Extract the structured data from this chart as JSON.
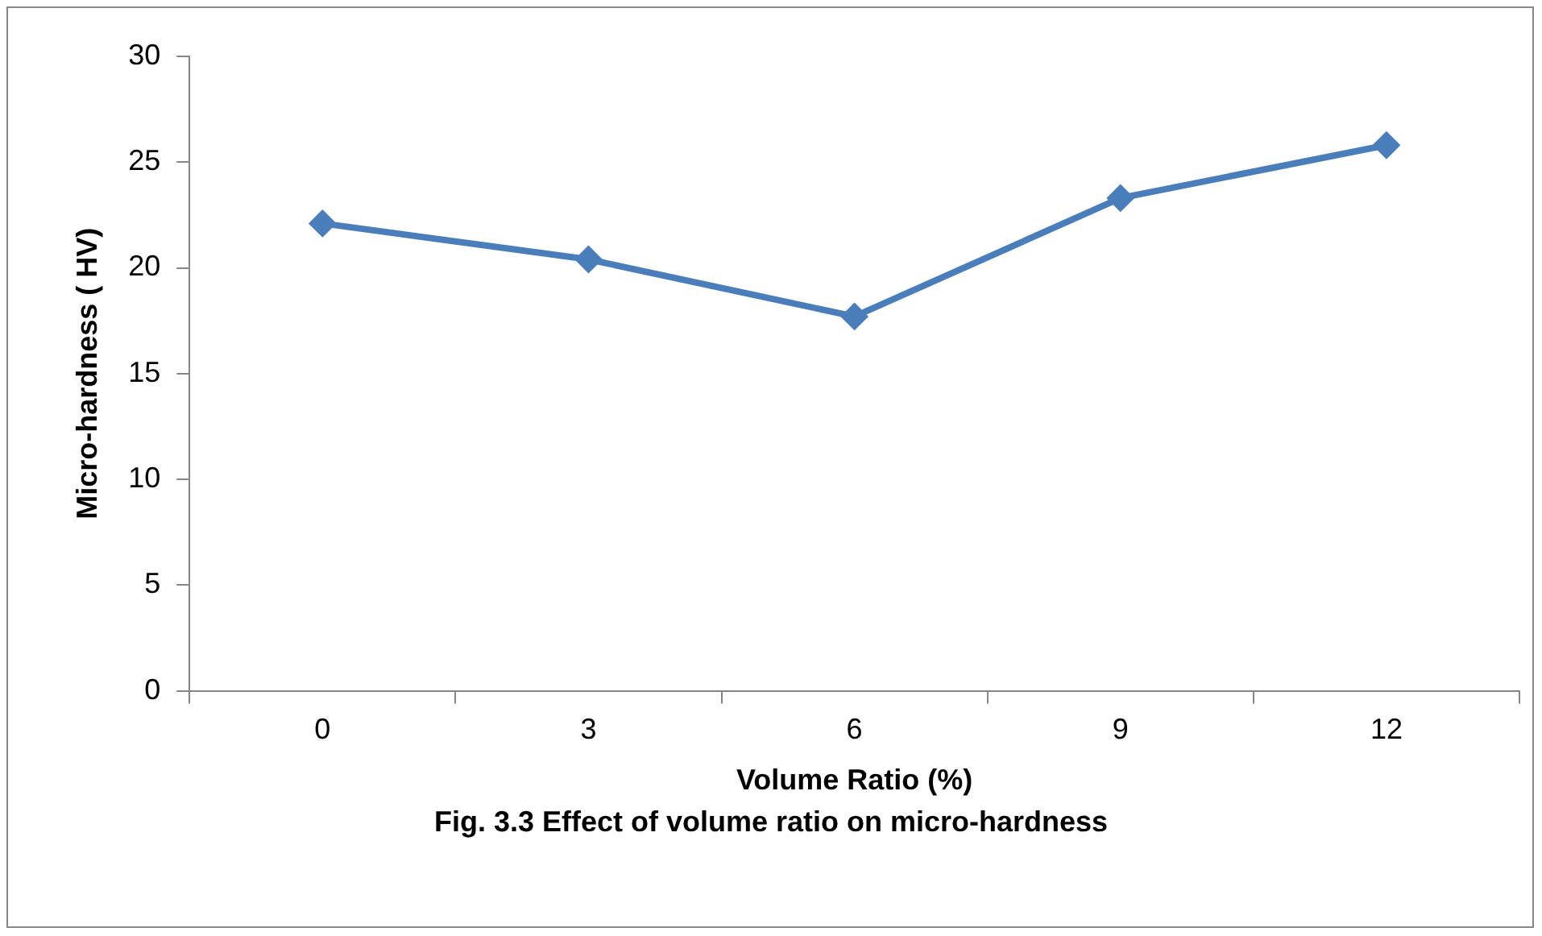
{
  "chart_data": {
    "type": "line",
    "xlabel": "Volume Ratio (%)",
    "ylabel": "Micro-hardness ( HV)",
    "categories": [
      "0",
      "3",
      "6",
      "9",
      "12"
    ],
    "series": [
      {
        "color": "#4a7ebb",
        "values": [
          22.1,
          20.4,
          17.7,
          23.3,
          25.8
        ]
      }
    ],
    "ylim": [
      0,
      30
    ],
    "yticks": [
      0,
      5,
      10,
      15,
      20,
      25,
      30
    ],
    "grid": false,
    "legend": false,
    "marker": "diamond",
    "line_style": "solid",
    "annotations": [
      "Fig. 3.3 Effect of volume ratio on micro-hardness"
    ]
  }
}
